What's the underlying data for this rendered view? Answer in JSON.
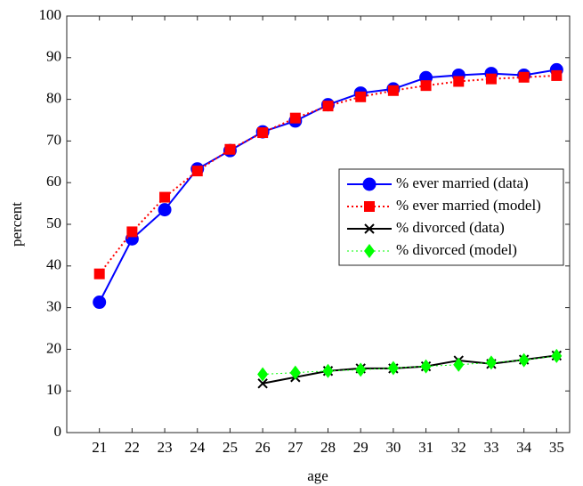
{
  "chart_data": {
    "type": "line",
    "xlabel": "age",
    "ylabel": "percent",
    "x": [
      21,
      22,
      23,
      24,
      25,
      26,
      27,
      28,
      29,
      30,
      31,
      32,
      33,
      34,
      35
    ],
    "series": [
      {
        "name": "% ever married (data)",
        "color": "#0000ff",
        "marker": "circle",
        "linestyle": "solid",
        "values": [
          31.3,
          46.5,
          53.5,
          63.3,
          67.7,
          72.2,
          74.8,
          78.7,
          81.5,
          82.5,
          85.2,
          85.8,
          86.2,
          85.8,
          87.1
        ]
      },
      {
        "name": "% ever married (model)",
        "color": "#ff0000",
        "marker": "square",
        "linestyle": "dotted",
        "values": [
          38.1,
          48.2,
          56.5,
          62.8,
          68.0,
          72.0,
          75.5,
          78.4,
          80.6,
          82.1,
          83.3,
          84.3,
          84.9,
          85.3,
          85.7
        ]
      },
      {
        "name": "% divorced (data)",
        "color": "#000000",
        "marker": "x",
        "linestyle": "solid",
        "values": [
          null,
          null,
          null,
          null,
          null,
          11.8,
          13.3,
          14.8,
          15.4,
          15.4,
          15.9,
          17.3,
          16.5,
          17.5,
          18.5
        ]
      },
      {
        "name": "% divorced (model)",
        "color": "#00ff00",
        "marker": "diamond",
        "linestyle": "dotted",
        "values": [
          null,
          null,
          null,
          null,
          null,
          14.0,
          14.4,
          14.8,
          15.1,
          15.5,
          15.9,
          16.3,
          16.8,
          17.4,
          18.4
        ]
      }
    ],
    "xlim": [
      20,
      35.4
    ],
    "xticks": [
      21,
      22,
      23,
      24,
      25,
      26,
      27,
      28,
      29,
      30,
      31,
      32,
      33,
      34,
      35
    ],
    "ylim": [
      0,
      100
    ],
    "yticks": [
      0,
      10,
      20,
      30,
      40,
      50,
      60,
      70,
      80,
      90,
      100
    ],
    "grid": false,
    "legend": "right"
  }
}
